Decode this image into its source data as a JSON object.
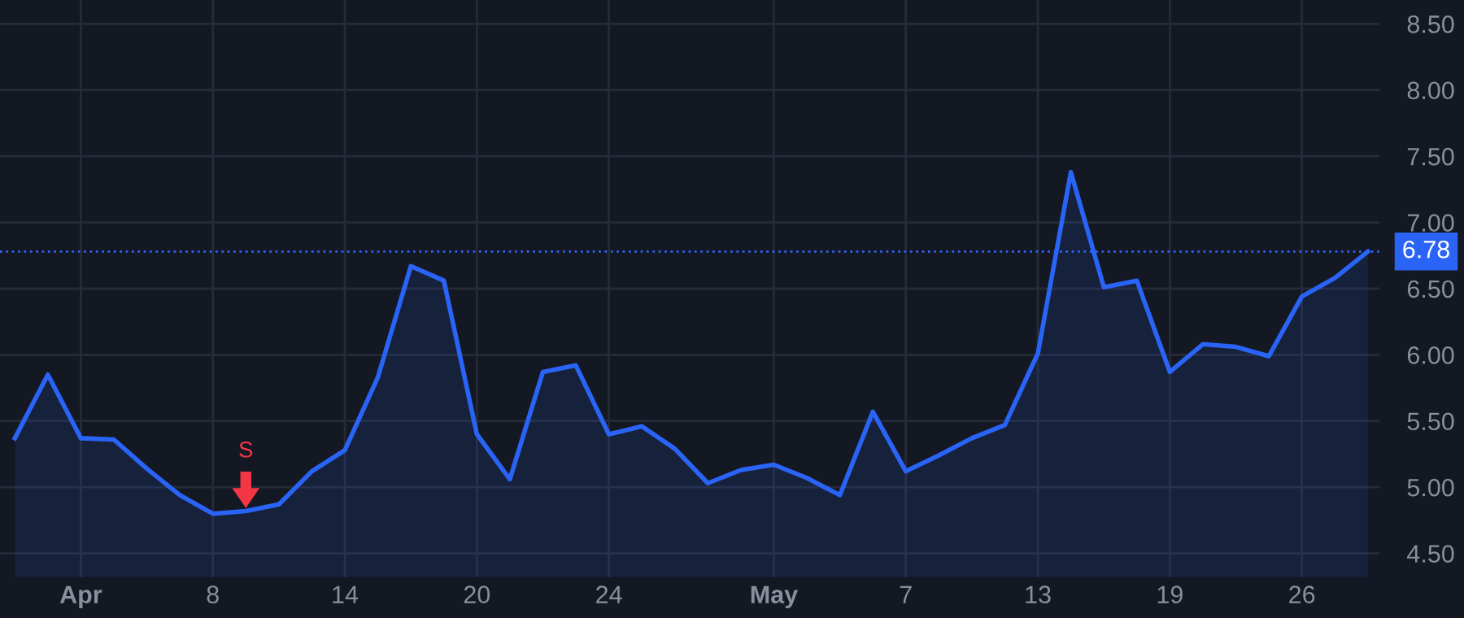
{
  "chart_data": {
    "type": "area",
    "categories": [
      null,
      null,
      "Apr",
      null,
      null,
      null,
      "8",
      null,
      null,
      null,
      "14",
      null,
      null,
      null,
      "20",
      null,
      null,
      null,
      "24",
      null,
      null,
      null,
      null,
      "May",
      null,
      null,
      null,
      "7",
      null,
      null,
      null,
      "13",
      null,
      null,
      null,
      "19",
      null,
      null,
      null,
      "26",
      null,
      null
    ],
    "series": [
      {
        "color": "#2a64f6",
        "values": [
          5.37,
          5.85,
          5.37,
          5.36,
          5.14,
          4.94,
          4.8,
          4.82,
          4.87,
          5.12,
          5.28,
          5.83,
          6.67,
          6.56,
          5.4,
          5.06,
          5.87,
          5.92,
          5.4,
          5.46,
          5.29,
          5.03,
          5.13,
          5.17,
          5.07,
          4.94,
          5.57,
          5.12,
          5.24,
          5.37,
          5.47,
          6.01,
          7.38,
          6.51,
          6.56,
          5.87,
          6.08,
          6.06,
          5.99,
          6.44,
          6.58,
          6.78
        ]
      },
      {
        "type": "scatter",
        "name": "S",
        "color": "#f23645",
        "values": [
          null,
          null,
          null,
          null,
          null,
          null,
          null,
          4.98,
          null,
          null,
          null,
          null,
          null,
          null,
          null,
          null,
          null,
          null,
          null,
          null,
          null,
          null,
          null,
          null,
          null,
          null,
          null,
          null,
          null,
          null,
          null,
          null,
          null,
          null,
          null,
          null,
          null,
          null,
          null,
          null,
          null,
          null
        ]
      }
    ],
    "ylim": [
      4.32,
      8.68
    ],
    "yticks": [
      {
        "value": 4.5,
        "label": "4.50"
      },
      {
        "value": 5.0,
        "label": "5.00"
      },
      {
        "value": 5.5,
        "label": "5.50"
      },
      {
        "value": 6.0,
        "label": "6.00"
      },
      {
        "value": 6.5,
        "label": "6.50"
      },
      {
        "value": 7.0,
        "label": "7.00"
      },
      {
        "value": 7.5,
        "label": "7.50"
      },
      {
        "value": 8.0,
        "label": "8.00"
      },
      {
        "value": 8.5,
        "label": "8.50"
      }
    ],
    "ref_lines": [
      {
        "axis": "y",
        "value": 6.78,
        "label": "6.78",
        "color": "#2a64f6",
        "line_style": "dotted"
      }
    ],
    "grid": true,
    "legend": false
  }
}
